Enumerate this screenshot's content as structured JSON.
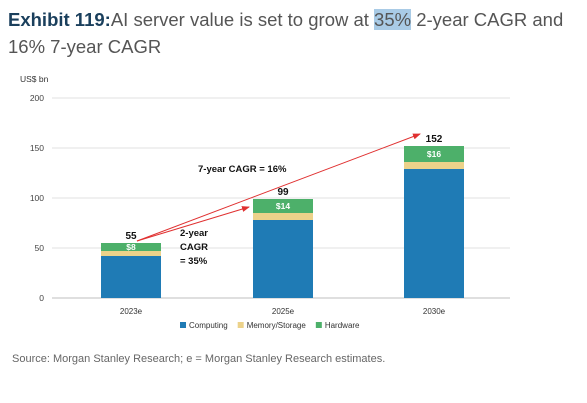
{
  "title": {
    "exhibit": "Exhibit 119:",
    "before_highlight": "AI server value is set to grow at ",
    "highlight": "35%",
    "after_highlight": " 2-year CAGR and 16% 7-year CAGR"
  },
  "source": "Source: Morgan Stanley Research; e = Morgan Stanley Research estimates.",
  "chart_data": {
    "type": "bar",
    "stacked": true,
    "categories": [
      "2023e",
      "2025e",
      "2030e"
    ],
    "series": [
      {
        "name": "Computing",
        "color": "#1f7bb5",
        "values": [
          42,
          78,
          129
        ]
      },
      {
        "name": "Memory/Storage",
        "color": "#ecd28a",
        "values": [
          5,
          7,
          7
        ]
      },
      {
        "name": "Hardware",
        "color": "#4db06a",
        "values": [
          8,
          14,
          16
        ]
      }
    ],
    "totals": [
      "55",
      "99",
      "152"
    ],
    "hardware_labels": [
      "$8",
      "$14",
      "$16"
    ],
    "ylabel": "US$ bn",
    "ylim": [
      0,
      200
    ],
    "yticks": [
      0,
      50,
      100,
      150,
      200
    ],
    "grid": true,
    "legend": "bottom",
    "annotations": {
      "cagr7": "7-year CAGR = 16%",
      "cagr2_line1": "2-year",
      "cagr2_line2": "CAGR",
      "cagr2_line3": "= 35%"
    },
    "arrow_color": "#e03030"
  }
}
